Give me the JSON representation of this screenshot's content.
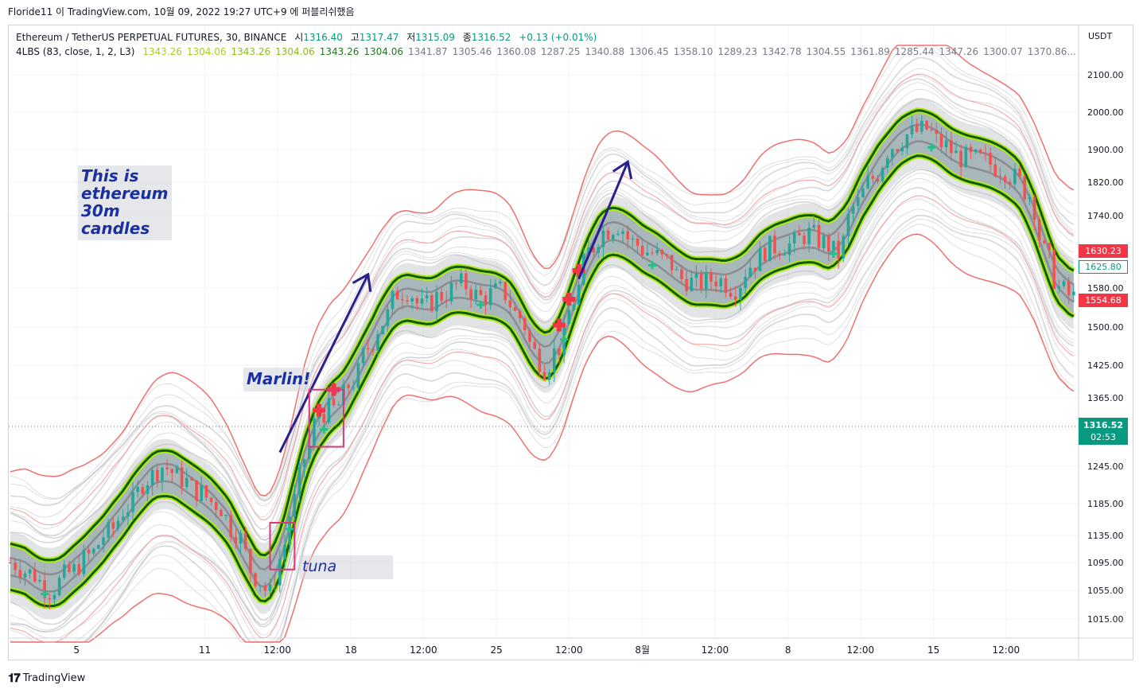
{
  "header": {
    "author": "Floride11",
    "platform": "TradingView.com",
    "date_text": "10월 09, 2022 19:27 UTC+9",
    "published_text": "에 퍼블리쉬했음",
    "connector": "이"
  },
  "legend": {
    "symbol": "Ethereum / TetherUS PERPETUAL FUTURES, 30, BINANCE",
    "open_label": "시",
    "open": "1316.40",
    "high_label": "고",
    "high": "1317.47",
    "low_label": "저",
    "low": "1315.09",
    "close_label": "종",
    "close": "1316.52",
    "change": "+0.13 (+0.01%)"
  },
  "indicator": {
    "name": "4LBS (83, close, 1, 2, L3)",
    "values": [
      "1343.26",
      "1304.06",
      "1343.26",
      "1304.06",
      "1343.26",
      "1304.06",
      "1341.87",
      "1305.46",
      "1360.08",
      "1287.25",
      "1340.88",
      "1306.45",
      "1358.10",
      "1289.23",
      "1342.78",
      "1304.55",
      "1361.89",
      "1285.44",
      "1347.26",
      "1300.07",
      "1370.86..."
    ],
    "value_colors": [
      "#a4d126",
      "#a4d126",
      "#8cbf20",
      "#8cbf20",
      "#1e7a1e",
      "#1e7a1e",
      "#787b86",
      "#787b86",
      "#787b86",
      "#787b86",
      "#787b86",
      "#787b86",
      "#787b86",
      "#787b86",
      "#787b86",
      "#787b86",
      "#787b86",
      "#787b86",
      "#787b86",
      "#787b86",
      "#787b86"
    ]
  },
  "annotations": {
    "eth_note": [
      "This is",
      "ethereum",
      "30m",
      "candles"
    ],
    "marlin": "Marlin!",
    "tuna": "tuna"
  },
  "price_tags": {
    "upper": {
      "value": "1630.23",
      "color": "#f23645"
    },
    "mid": {
      "value": "1625.80",
      "color": "#089981"
    },
    "lower": {
      "value": "1554.68",
      "color": "#f23645"
    },
    "last": {
      "value": "1316.52",
      "countdown": "02:53",
      "color": "#089981"
    }
  },
  "chart_data": {
    "type": "candlestick",
    "currency": "USDT",
    "timeframe": "30",
    "ylim": [
      980,
      2170
    ],
    "y_ticks": [
      2100,
      2000,
      1900,
      1820,
      1740,
      1580,
      1500,
      1425,
      1365,
      1245,
      1185,
      1135,
      1095,
      1055,
      1015
    ],
    "y_tick_labels": [
      "2100.00",
      "2000.00",
      "1900.00",
      "1820.00",
      "1740.00",
      "1580.00",
      "1500.00",
      "1425.00",
      "1365.00",
      "1245.00",
      "1185.00",
      "1135.00",
      "1095.00",
      "1055.00",
      "1015.00"
    ],
    "x_ticks": [
      {
        "label": "5",
        "bar": 13.5
      },
      {
        "label": "11",
        "bar": 39.7
      },
      {
        "label": "12:00",
        "bar": 54.5
      },
      {
        "label": "18",
        "bar": 69.5
      },
      {
        "label": "12:00",
        "bar": 84.3
      },
      {
        "label": "25",
        "bar": 99.2
      },
      {
        "label": "12:00",
        "bar": 114.0
      },
      {
        "label": "8월",
        "bar": 129.0
      },
      {
        "label": "12:00",
        "bar": 143.8
      },
      {
        "label": "8",
        "bar": 158.7
      },
      {
        "label": "12:00",
        "bar": 173.5
      },
      {
        "label": "15",
        "bar": 188.4
      },
      {
        "label": "12:00",
        "bar": 203.2
      }
    ],
    "bar_count": 218,
    "last_price": 1316.52,
    "mid_series_anchors": [
      [
        0,
        1095
      ],
      [
        4,
        1080
      ],
      [
        8,
        1055
      ],
      [
        12,
        1080
      ],
      [
        16,
        1105
      ],
      [
        20,
        1140
      ],
      [
        24,
        1180
      ],
      [
        28,
        1225
      ],
      [
        31,
        1245
      ],
      [
        35,
        1225
      ],
      [
        38,
        1205
      ],
      [
        42,
        1185
      ],
      [
        46,
        1140
      ],
      [
        50,
        1075
      ],
      [
        53,
        1050
      ],
      [
        55,
        1100
      ],
      [
        58,
        1190
      ],
      [
        60,
        1260
      ],
      [
        63,
        1340
      ],
      [
        66,
        1345
      ],
      [
        70,
        1395
      ],
      [
        73,
        1460
      ],
      [
        76,
        1510
      ],
      [
        79,
        1570
      ],
      [
        81,
        1575
      ],
      [
        84,
        1540
      ],
      [
        88,
        1565
      ],
      [
        92,
        1590
      ],
      [
        96,
        1560
      ],
      [
        100,
        1575
      ],
      [
        104,
        1520
      ],
      [
        107,
        1450
      ],
      [
        109,
        1420
      ],
      [
        112,
        1460
      ],
      [
        115,
        1555
      ],
      [
        118,
        1660
      ],
      [
        121,
        1705
      ],
      [
        124,
        1720
      ],
      [
        127,
        1680
      ],
      [
        130,
        1660
      ],
      [
        134,
        1640
      ],
      [
        137,
        1600
      ],
      [
        140,
        1590
      ],
      [
        144,
        1600
      ],
      [
        148,
        1580
      ],
      [
        151,
        1630
      ],
      [
        155,
        1670
      ],
      [
        159,
        1675
      ],
      [
        163,
        1700
      ],
      [
        166,
        1680
      ],
      [
        169,
        1655
      ],
      [
        172,
        1760
      ],
      [
        176,
        1830
      ],
      [
        180,
        1910
      ],
      [
        184,
        1945
      ],
      [
        187,
        1955
      ],
      [
        190,
        1915
      ],
      [
        194,
        1880
      ],
      [
        198,
        1875
      ],
      [
        202,
        1855
      ],
      [
        205,
        1830
      ],
      [
        208,
        1790
      ],
      [
        211,
        1660
      ],
      [
        214,
        1580
      ],
      [
        217,
        1560
      ]
    ],
    "band": {
      "inner_halfwidth": 40,
      "outer_halfwidth": 100,
      "spread_scale": 1.6
    },
    "signals": {
      "buy_markers_bar": [
        7,
        57,
        64,
        96,
        113,
        131,
        168,
        188
      ],
      "sell_markers_bar": [
        63,
        66,
        112,
        114,
        116
      ]
    },
    "annotations_arrows": [
      {
        "from_bar": 55,
        "from_price": 1270,
        "to_bar": 73,
        "to_price": 1610
      },
      {
        "from_bar": 116,
        "from_price": 1600,
        "to_bar": 126,
        "to_price": 1870
      }
    ],
    "highlight_boxes": [
      {
        "bar_start": 53,
        "bar_end": 58,
        "price_top": 1155,
        "price_bottom": 1085
      },
      {
        "bar_start": 61,
        "bar_end": 68,
        "price_top": 1380,
        "price_bottom": 1280
      }
    ],
    "colors": {
      "up": "#26a69a",
      "down": "#ef5350",
      "band_fill": "#8fa4a6",
      "channel_fill": "#c2c4c8",
      "lime": "#b5e61d",
      "dark_green": "#0b5d0b",
      "outer_red": "#f07070",
      "gray_line": "#8a8d93"
    }
  }
}
